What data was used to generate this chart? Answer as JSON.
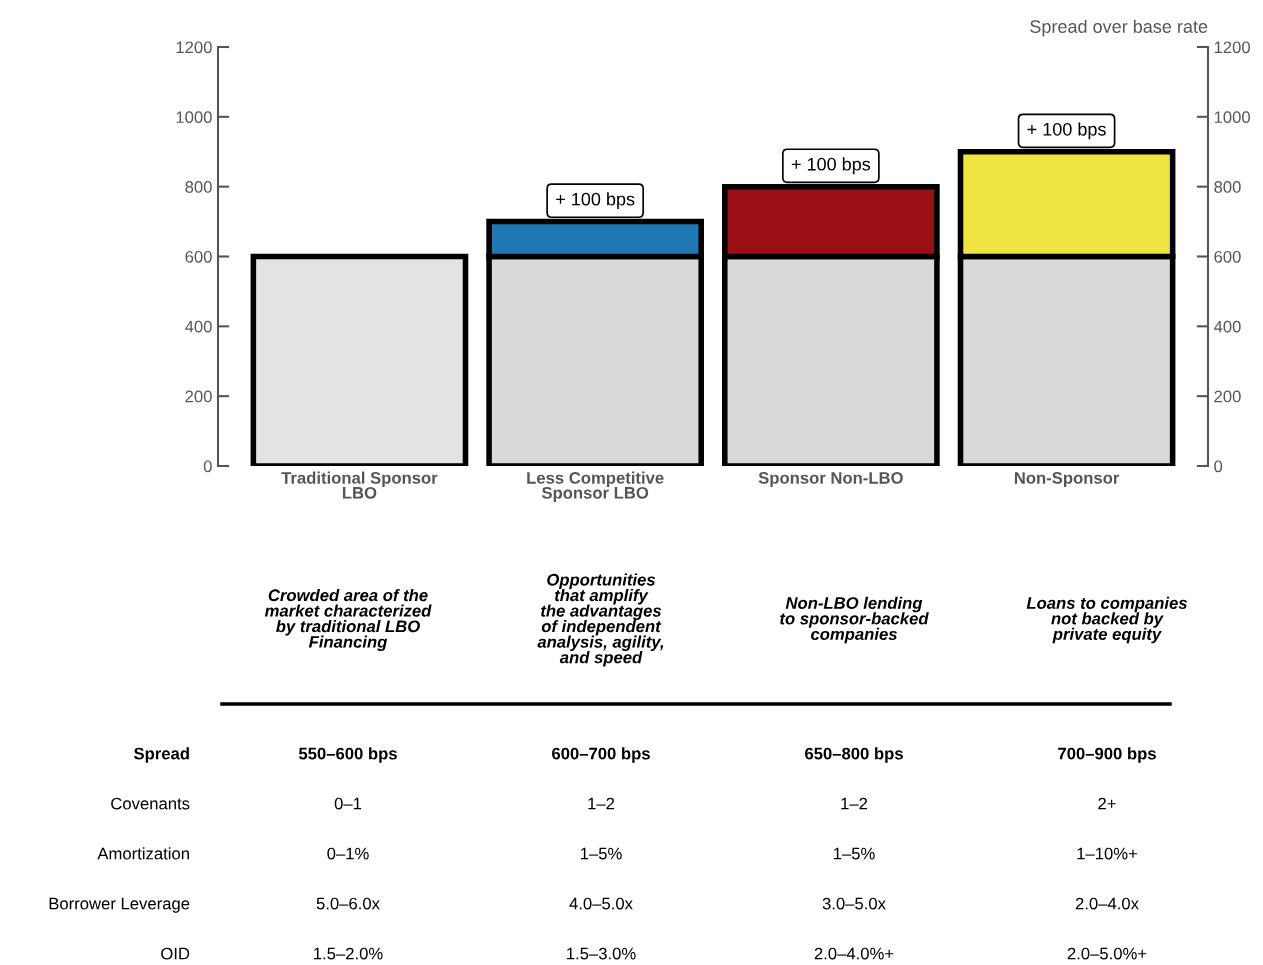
{
  "chart_data": {
    "type": "bar",
    "stacked": true,
    "categories": [
      "Traditional Sponsor\nLBO",
      "Less Competitive\nSponsor LBO",
      "Sponsor Non-LBO",
      "Non-Sponsor"
    ],
    "series": [
      {
        "colors": [
          "#e3e3e3",
          "#d9d9d9",
          "#d9d9d9",
          "#d9d9d9"
        ],
        "values": [
          600,
          600,
          600,
          600
        ]
      },
      {
        "colors": [
          "#ffffff",
          "#1f77b4",
          "#9a0f14",
          "#f0e442"
        ],
        "values": [
          null,
          100,
          200,
          300
        ]
      }
    ],
    "ylim": [
      0,
      1200
    ],
    "yticks": [
      0,
      200,
      400,
      600,
      800,
      1000,
      1200
    ],
    "y2lim": [
      0,
      1200
    ],
    "y2ticks": [
      0,
      200,
      400,
      600,
      800,
      1000,
      1200
    ],
    "y2label": "Spread over base rate",
    "grid": false,
    "legend": false,
    "annotations": [
      {
        "text": "+ 100 bps",
        "x": "Less Competitive\nSponsor LBO",
        "y": 700
      },
      {
        "text": "+ 100 bps",
        "x": "Sponsor Non-LBO",
        "y": 800
      },
      {
        "text": "+ 100 bps",
        "x": "Non-Sponsor",
        "y": 900
      },
      "Crowded area of the\nmarket characterized\nby traditional LBO\nFinancing",
      "Opportunities\nthat amplify\nthe advantages\nof independent\nanalysis, agility,\nand speed",
      "Non-LBO lending\nto sponsor-backed\ncompanies",
      "Loans to companies\nnot backed by\nprivate equity",
      "Spread",
      "550–600 bps",
      "600–700 bps",
      "650–800 bps",
      "700–900 bps",
      "Covenants",
      "0–1",
      "1–2",
      "1–2",
      "2+",
      "Amortization",
      "0–1%",
      "1–5%",
      "1–5%",
      "1–10%+",
      "Borrower Leverage",
      "5.0–6.0x",
      "4.0–5.0x",
      "3.0–5.0x",
      "2.0–4.0x",
      "OID",
      "1.5–2.0%",
      "1.5–3.0%",
      "2.0–4.0%+",
      "2.0–5.0%+"
    ]
  }
}
